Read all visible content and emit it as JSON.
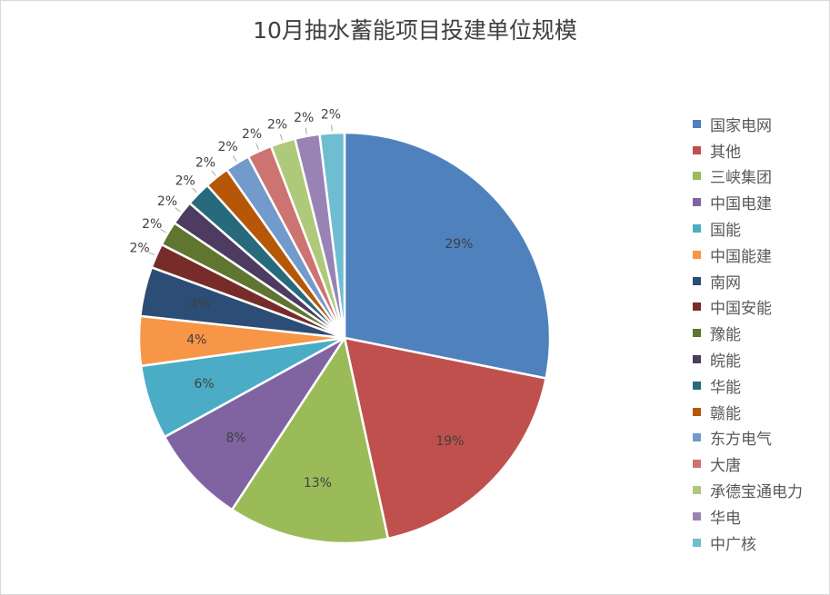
{
  "chart_data": {
    "type": "pie",
    "title": "10月抽水蓄能项目投建单位规模",
    "slices": [
      {
        "name": "国家电网",
        "value": 29,
        "label": "29%",
        "color": "#4F81BD"
      },
      {
        "name": "其他",
        "value": 19,
        "label": "19%",
        "color": "#C0504D"
      },
      {
        "name": "三峡集团",
        "value": 13,
        "label": "13%",
        "color": "#9BBB59"
      },
      {
        "name": "中国电建",
        "value": 8,
        "label": "8%",
        "color": "#8064A2"
      },
      {
        "name": "国能",
        "value": 6,
        "label": "6%",
        "color": "#4BACC6"
      },
      {
        "name": "中国能建",
        "value": 4,
        "label": "4%",
        "color": "#F79646"
      },
      {
        "name": "南网",
        "value": 4,
        "label": "4%",
        "color": "#2C4D75"
      },
      {
        "name": "中国安能",
        "value": 2,
        "label": "2%",
        "color": "#772C2A"
      },
      {
        "name": "豫能",
        "value": 2,
        "label": "2%",
        "color": "#5F7530"
      },
      {
        "name": "皖能",
        "value": 2,
        "label": "2%",
        "color": "#4D3B62"
      },
      {
        "name": "华能",
        "value": 2,
        "label": "2%",
        "color": "#276A7C"
      },
      {
        "name": "赣能",
        "value": 2,
        "label": "2%",
        "color": "#B65708"
      },
      {
        "name": "东方电气",
        "value": 2,
        "label": "2%",
        "color": "#729ACA"
      },
      {
        "name": "大唐",
        "value": 2,
        "label": "2%",
        "color": "#CD7371"
      },
      {
        "name": "承德宝通电力",
        "value": 2,
        "label": "2%",
        "color": "#AFC97A"
      },
      {
        "name": "华电",
        "value": 2,
        "label": "2%",
        "color": "#9983B5"
      },
      {
        "name": "中广核",
        "value": 2,
        "label": "2%",
        "color": "#6FBDD1"
      }
    ],
    "legend_position": "right"
  }
}
